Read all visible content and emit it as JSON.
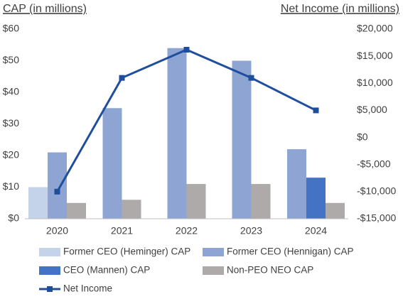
{
  "chart_data": {
    "type": "bar_line",
    "left_axis_title": "CAP (in millions)",
    "right_axis_title": "Net Income (in millions)",
    "categories": [
      "2020",
      "2021",
      "2022",
      "2023",
      "2024"
    ],
    "series": [
      {
        "name": "Former CEO (Heminger) CAP",
        "color": "#c5d3ea",
        "values": [
          10,
          null,
          null,
          null,
          null
        ]
      },
      {
        "name": "Former CEO (Hennigan) CAP",
        "color": "#8ea5d3",
        "values": [
          21,
          35,
          54,
          50,
          22
        ]
      },
      {
        "name": "CEO (Mannen) CAP",
        "color": "#4472c4",
        "values": [
          null,
          null,
          null,
          null,
          13
        ]
      },
      {
        "name": "Non-PEO NEO CAP",
        "color": "#aeaaaa",
        "values": [
          5,
          6,
          11,
          11,
          5
        ]
      },
      {
        "name": "Net Income",
        "color": "#1f4e9c",
        "axis": "y2",
        "type": "line",
        "values": [
          -10000,
          11000,
          16200,
          11000,
          5000
        ]
      }
    ],
    "ylim": [
      0,
      60
    ],
    "yticks": [
      {
        "value": 0,
        "label": "$0"
      },
      {
        "value": 10,
        "label": "$10"
      },
      {
        "value": 20,
        "label": "$20"
      },
      {
        "value": 30,
        "label": "$30"
      },
      {
        "value": 40,
        "label": "$40"
      },
      {
        "value": 50,
        "label": "$50"
      },
      {
        "value": 60,
        "label": "$60"
      }
    ],
    "y2lim": [
      -15000,
      20000
    ],
    "y2ticks": [
      {
        "value": -15000,
        "label": "-$15,000"
      },
      {
        "value": -10000,
        "label": "-$10,000"
      },
      {
        "value": -5000,
        "label": "-$5,000"
      },
      {
        "value": 0,
        "label": "$0"
      },
      {
        "value": 5000,
        "label": "$5,000"
      },
      {
        "value": 10000,
        "label": "$10,000"
      },
      {
        "value": 15000,
        "label": "$15,000"
      },
      {
        "value": 20000,
        "label": "$20,000"
      }
    ]
  }
}
